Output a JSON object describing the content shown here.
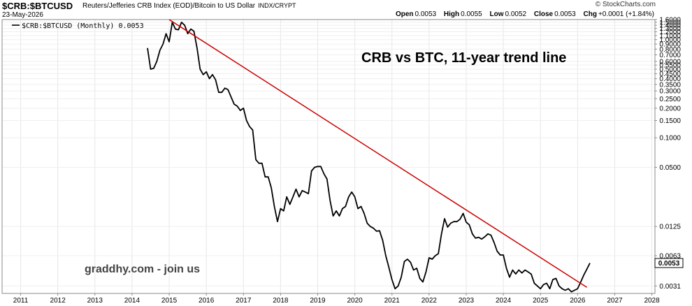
{
  "header": {
    "symbol": "$CRB:$BTCUSD",
    "description": "Reuters/Jefferies CRB Index (EOD)/Bitcoin to US Dollar",
    "exchange": "INDX/CRYPT",
    "date": "23-May-2026",
    "copyright": "© StockCharts.com",
    "ohlc": {
      "open_label": "Open",
      "open": "0.0053",
      "high_label": "High",
      "high": "0.0055",
      "low_label": "Low",
      "low": "0.0052",
      "close_label": "Close",
      "close": "0.0053",
      "chg_label": "Chg",
      "chg": "+0.0001 (+1.84%)"
    }
  },
  "chart_data": {
    "type": "line",
    "title": "CRB vs BTC, 11-year trend line",
    "legend": "$CRB:$BTCUSD (Monthly) 0.0053",
    "legend_placement": "top-left",
    "watermark": "graddhy.com - join us",
    "y_scale": "log",
    "ylim": [
      0.0026,
      1.6
    ],
    "xlim": [
      "2010-07",
      "2028-02"
    ],
    "x_ticks": [
      "2011",
      "2012",
      "2013",
      "2014",
      "2015",
      "2016",
      "2017",
      "2018",
      "2019",
      "2020",
      "2021",
      "2022",
      "2023",
      "2024",
      "2025",
      "2026",
      "2027",
      "2028"
    ],
    "y_ticks": [
      "1.6000",
      "1.5000",
      "1.4000",
      "1.3000",
      "1.2000",
      "1.1000",
      "1.0000",
      "0.9000",
      "0.8000",
      "0.7000",
      "0.6000",
      "0.5500",
      "0.5000",
      "0.4500",
      "0.4000",
      "0.3500",
      "0.3000",
      "0.2500",
      "0.2000",
      "0.1500",
      "0.1000",
      "0.0500",
      "0.0125",
      "0.0063",
      "0.0031"
    ],
    "last_value_label": "0.0053",
    "series": [
      {
        "name": "$CRB:$BTCUSD",
        "color": "#000000",
        "points": [
          [
            "2014-06",
            0.82
          ],
          [
            "2014-07",
            0.5
          ],
          [
            "2014-08",
            0.51
          ],
          [
            "2014-09",
            0.6
          ],
          [
            "2014-10",
            0.78
          ],
          [
            "2014-11",
            0.9
          ],
          [
            "2014-12",
            1.15
          ],
          [
            "2015-01",
            0.95
          ],
          [
            "2015-02",
            1.5
          ],
          [
            "2015-03",
            1.28
          ],
          [
            "2015-04",
            1.26
          ],
          [
            "2015-05",
            1.5
          ],
          [
            "2015-06",
            1.4
          ],
          [
            "2015-07",
            1.15
          ],
          [
            "2015-08",
            1.28
          ],
          [
            "2015-09",
            1.22
          ],
          [
            "2015-10",
            0.82
          ],
          [
            "2015-11",
            0.5
          ],
          [
            "2015-12",
            0.44
          ],
          [
            "2016-01",
            0.47
          ],
          [
            "2016-02",
            0.4
          ],
          [
            "2016-03",
            0.44
          ],
          [
            "2016-04",
            0.39
          ],
          [
            "2016-05",
            0.29
          ],
          [
            "2016-06",
            0.29
          ],
          [
            "2016-07",
            0.32
          ],
          [
            "2016-08",
            0.31
          ],
          [
            "2016-09",
            0.26
          ],
          [
            "2016-10",
            0.22
          ],
          [
            "2016-11",
            0.21
          ],
          [
            "2016-12",
            0.19
          ],
          [
            "2017-01",
            0.2
          ],
          [
            "2017-02",
            0.15
          ],
          [
            "2017-03",
            0.13
          ],
          [
            "2017-04",
            0.12
          ],
          [
            "2017-05",
            0.06
          ],
          [
            "2017-06",
            0.055
          ],
          [
            "2017-07",
            0.055
          ],
          [
            "2017-08",
            0.04
          ],
          [
            "2017-09",
            0.04
          ],
          [
            "2017-10",
            0.031
          ],
          [
            "2017-11",
            0.02
          ],
          [
            "2017-12",
            0.014
          ],
          [
            "2018-01",
            0.019
          ],
          [
            "2018-02",
            0.018
          ],
          [
            "2018-03",
            0.025
          ],
          [
            "2018-04",
            0.021
          ],
          [
            "2018-05",
            0.025
          ],
          [
            "2018-06",
            0.03
          ],
          [
            "2018-07",
            0.025
          ],
          [
            "2018-08",
            0.029
          ],
          [
            "2018-09",
            0.028
          ],
          [
            "2018-10",
            0.027
          ],
          [
            "2018-11",
            0.046
          ],
          [
            "2018-12",
            0.05
          ],
          [
            "2019-01",
            0.051
          ],
          [
            "2019-02",
            0.051
          ],
          [
            "2019-03",
            0.043
          ],
          [
            "2019-04",
            0.038
          ],
          [
            "2019-05",
            0.023
          ],
          [
            "2019-06",
            0.016
          ],
          [
            "2019-07",
            0.018
          ],
          [
            "2019-08",
            0.016
          ],
          [
            "2019-09",
            0.019
          ],
          [
            "2019-10",
            0.02
          ],
          [
            "2019-11",
            0.025
          ],
          [
            "2019-12",
            0.028
          ],
          [
            "2020-01",
            0.025
          ],
          [
            "2020-02",
            0.019
          ],
          [
            "2020-03",
            0.02
          ],
          [
            "2020-04",
            0.017
          ],
          [
            "2020-05",
            0.0135
          ],
          [
            "2020-06",
            0.0125
          ],
          [
            "2020-07",
            0.012
          ],
          [
            "2020-08",
            0.0112
          ],
          [
            "2020-09",
            0.0113
          ],
          [
            "2020-10",
            0.009
          ],
          [
            "2020-11",
            0.0063
          ],
          [
            "2020-12",
            0.0048
          ],
          [
            "2021-01",
            0.0036
          ],
          [
            "2021-02",
            0.0029
          ],
          [
            "2021-03",
            0.0031
          ],
          [
            "2021-04",
            0.0038
          ],
          [
            "2021-05",
            0.0055
          ],
          [
            "2021-06",
            0.0058
          ],
          [
            "2021-07",
            0.0054
          ],
          [
            "2021-08",
            0.0045
          ],
          [
            "2021-09",
            0.0047
          ],
          [
            "2021-10",
            0.0037
          ],
          [
            "2021-11",
            0.0034
          ],
          [
            "2021-12",
            0.0043
          ],
          [
            "2022-01",
            0.006
          ],
          [
            "2022-02",
            0.0058
          ],
          [
            "2022-03",
            0.0063
          ],
          [
            "2022-04",
            0.0066
          ],
          [
            "2022-05",
            0.0105
          ],
          [
            "2022-06",
            0.015
          ],
          [
            "2022-07",
            0.0123
          ],
          [
            "2022-08",
            0.0135
          ],
          [
            "2022-09",
            0.014
          ],
          [
            "2022-10",
            0.014
          ],
          [
            "2022-11",
            0.0148
          ],
          [
            "2022-12",
            0.017
          ],
          [
            "2023-01",
            0.0138
          ],
          [
            "2023-02",
            0.013
          ],
          [
            "2023-03",
            0.0105
          ],
          [
            "2023-04",
            0.0095
          ],
          [
            "2023-05",
            0.0097
          ],
          [
            "2023-06",
            0.0093
          ],
          [
            "2023-07",
            0.0098
          ],
          [
            "2023-08",
            0.0105
          ],
          [
            "2023-09",
            0.0102
          ],
          [
            "2023-10",
            0.0086
          ],
          [
            "2023-11",
            0.007
          ],
          [
            "2023-12",
            0.0064
          ],
          [
            "2024-01",
            0.0064
          ],
          [
            "2024-02",
            0.0047
          ],
          [
            "2024-03",
            0.0038
          ],
          [
            "2024-04",
            0.0045
          ],
          [
            "2024-05",
            0.0041
          ],
          [
            "2024-06",
            0.0045
          ],
          [
            "2024-07",
            0.0042
          ],
          [
            "2024-08",
            0.0045
          ],
          [
            "2024-09",
            0.0043
          ],
          [
            "2024-10",
            0.0041
          ],
          [
            "2024-11",
            0.0033
          ],
          [
            "2024-12",
            0.0031
          ],
          [
            "2025-01",
            0.0029
          ],
          [
            "2025-02",
            0.0032
          ],
          [
            "2025-03",
            0.0033
          ],
          [
            "2025-04",
            0.0029
          ],
          [
            "2025-05",
            0.0036
          ],
          [
            "2025-06",
            0.0037
          ],
          [
            "2025-07",
            0.0031
          ],
          [
            "2025-08",
            0.0029
          ],
          [
            "2025-09",
            0.0028
          ],
          [
            "2025-10",
            0.0029
          ],
          [
            "2025-11",
            0.0027
          ],
          [
            "2025-12",
            0.0028
          ],
          [
            "2026-01",
            0.0029
          ],
          [
            "2026-02",
            0.0034
          ],
          [
            "2026-03",
            0.004
          ],
          [
            "2026-04",
            0.0046
          ],
          [
            "2026-05",
            0.0053
          ]
        ]
      },
      {
        "name": "trend line",
        "color": "#cc0000",
        "points": [
          [
            "2015-01",
            1.6
          ],
          [
            "2026-04",
            0.003
          ]
        ]
      }
    ]
  }
}
